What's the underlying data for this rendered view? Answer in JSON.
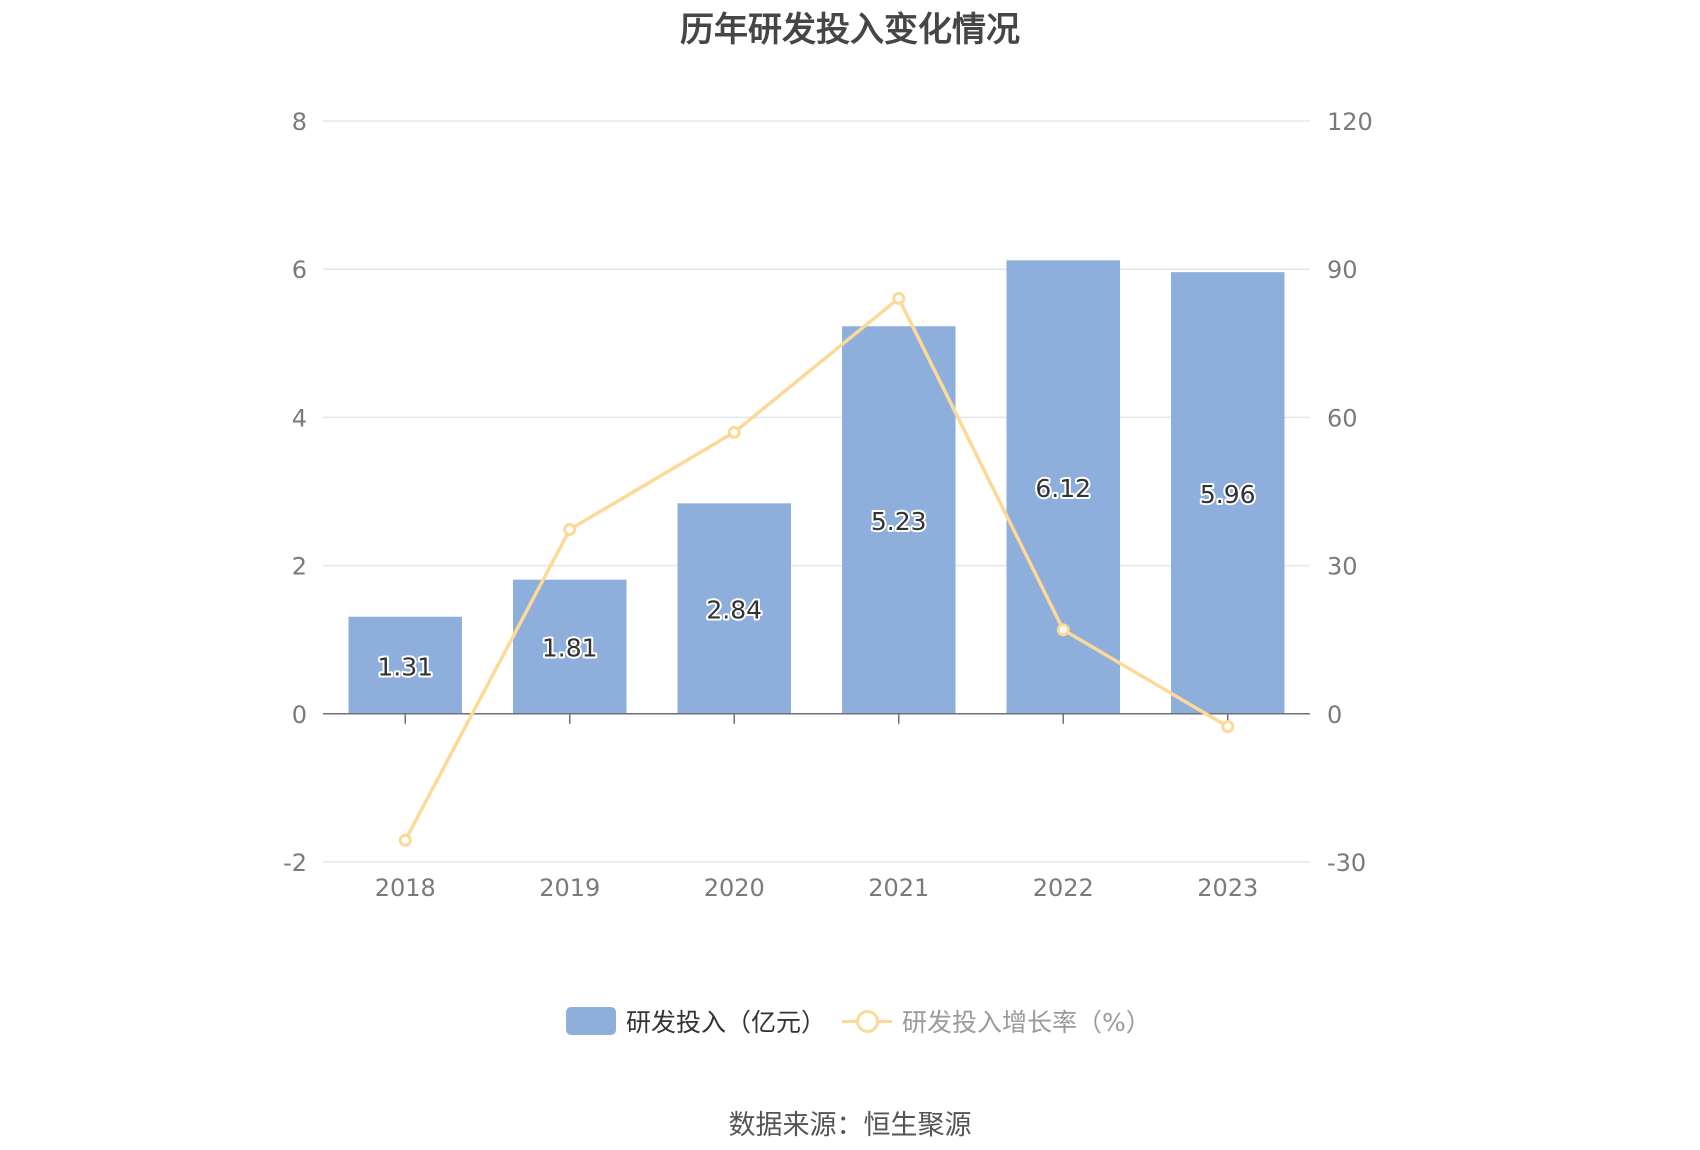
{
  "title": "历年研发投入变化情况",
  "source": "数据来源：恒生聚源",
  "legend": {
    "bar_label": "研发投入（亿元）",
    "line_label": "研发投入增长率（%）"
  },
  "colors": {
    "bar": "#8eaedb",
    "line": "#fcd997",
    "grid": "#e2e6f0",
    "axis_text": "#7a7a7a"
  },
  "chart_data": {
    "type": "bar",
    "title": "历年研发投入变化情况",
    "categories": [
      "2018",
      "2019",
      "2020",
      "2021",
      "2022",
      "2023"
    ],
    "y_left": {
      "min": -2,
      "max": 8,
      "ticks": [
        -2,
        0,
        2,
        4,
        6,
        8
      ]
    },
    "y_right": {
      "min": -30,
      "max": 120,
      "ticks": [
        -30,
        0,
        30,
        60,
        90,
        120
      ]
    },
    "grid": true,
    "legend_position": "bottom",
    "series": [
      {
        "name": "研发投入（亿元）",
        "type": "bar",
        "axis": "left",
        "values": [
          1.31,
          1.81,
          2.84,
          5.23,
          6.12,
          5.96
        ],
        "labels": [
          "1.31",
          "1.81",
          "2.84",
          "5.23",
          "6.12",
          "5.96"
        ]
      },
      {
        "name": "研发投入增长率（%）",
        "type": "line",
        "axis": "right",
        "values": [
          -25.6,
          37.3,
          57.0,
          84.1,
          17.0,
          -2.6
        ]
      }
    ]
  }
}
